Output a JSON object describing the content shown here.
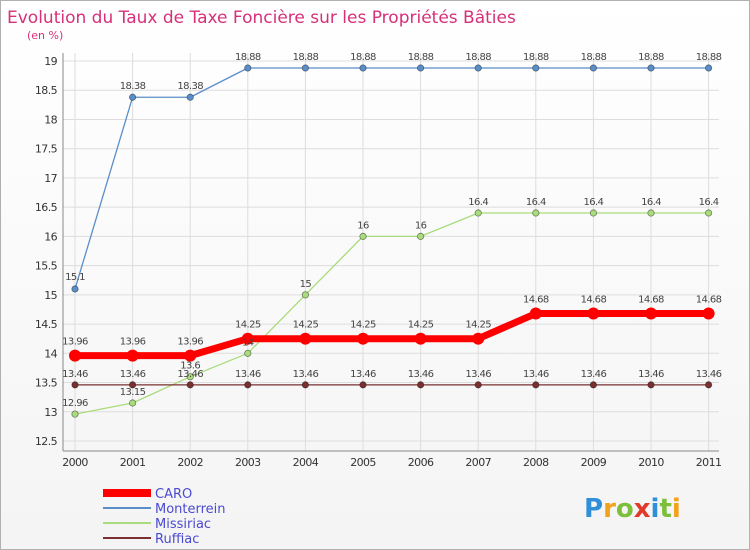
{
  "chart_data": {
    "type": "line",
    "title": "Evolution du Taux de Taxe Foncière sur les Propriétés Bâties",
    "ylabel": "(en %)",
    "xlabel": "",
    "ylim": [
      12.5,
      19
    ],
    "yticks": [
      "12.5",
      "13",
      "13.5",
      "14",
      "14.5",
      "15",
      "15.5",
      "16",
      "16.5",
      "17",
      "17.5",
      "18",
      "18.5",
      "19"
    ],
    "categories": [
      "2000",
      "2001",
      "2002",
      "2003",
      "2004",
      "2005",
      "2006",
      "2007",
      "2008",
      "2009",
      "2010",
      "2011"
    ],
    "series": [
      {
        "name": "Monterrein",
        "color": "#5a8ec8",
        "values": [
          15.1,
          18.38,
          18.38,
          18.88,
          18.88,
          18.88,
          18.88,
          18.88,
          18.88,
          18.88,
          18.88,
          18.88
        ]
      },
      {
        "name": "Missiriac",
        "color": "#a8dc7c",
        "values": [
          12.96,
          13.15,
          13.6,
          14,
          15,
          16,
          16,
          16.4,
          16.4,
          16.4,
          16.4,
          16.4
        ]
      },
      {
        "name": "Ruffiac",
        "color": "#7a3030",
        "values": [
          13.46,
          13.46,
          13.46,
          13.46,
          13.46,
          13.46,
          13.46,
          13.46,
          13.46,
          13.46,
          13.46,
          13.46
        ]
      },
      {
        "name": "CARO",
        "color": "#ff0000",
        "values": [
          13.96,
          13.96,
          13.96,
          14.25,
          14.25,
          14.25,
          14.25,
          14.25,
          14.68,
          14.68,
          14.68,
          14.68
        ]
      }
    ],
    "data_labels": [
      {
        "series": "Monterrein",
        "texts": [
          "15.1",
          "18.38",
          "18.38",
          "18.88",
          "18.88",
          "18.88",
          "18.88",
          "18.88",
          "18.88",
          "18.88",
          "18.88",
          "18.88"
        ]
      },
      {
        "series": "Missiriac",
        "texts": [
          "12.96",
          "13.15",
          "13.6",
          "14",
          "15",
          "16",
          "16",
          "16.4",
          "16.4",
          "16.4",
          "16.4",
          "16.4"
        ]
      },
      {
        "series": "Ruffiac",
        "texts": [
          "13.46",
          "13.46",
          "13.46",
          "13.46",
          "13.46",
          "13.46",
          "13.46",
          "13.46",
          "13.46",
          "13.46",
          "13.46",
          "13.46"
        ]
      },
      {
        "series": "CARO",
        "texts": [
          "13.96",
          "13.96",
          "13.96",
          "14.25",
          "14.25",
          "14.25",
          "14.25",
          "14.25",
          "14.68",
          "14.68",
          "14.68",
          "14.68"
        ]
      }
    ],
    "legend": [
      {
        "name": "CARO",
        "color": "#ff0000"
      },
      {
        "name": "Monterrein",
        "color": "#5a8ec8"
      },
      {
        "name": "Missiriac",
        "color": "#a8dc7c"
      },
      {
        "name": "Ruffiac",
        "color": "#7a3030"
      }
    ]
  },
  "logo": {
    "text": "Proxiti",
    "letter_colors": [
      "#2f8fd8",
      "#f2a21a",
      "#7cbf3a",
      "#e23a2a",
      "#2f8fd8",
      "#7cbf3a",
      "#f2a21a"
    ]
  }
}
